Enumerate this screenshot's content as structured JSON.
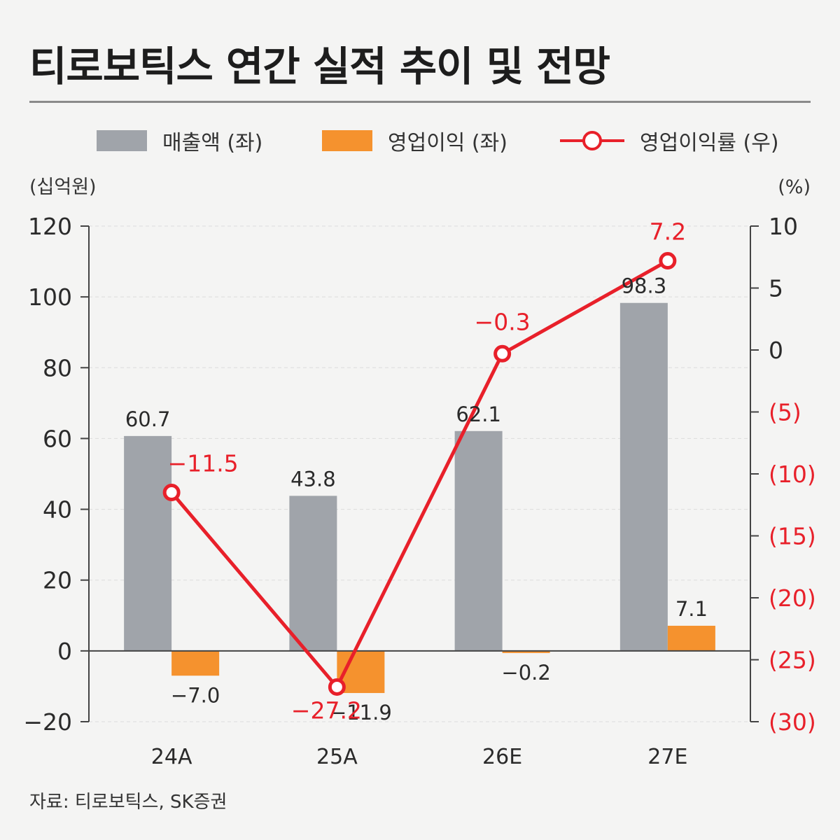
{
  "title": "티로보틱스 연간 실적 추이 및 전망",
  "legend": {
    "revenue": "매출액 (좌)",
    "op_income": "영업이익 (좌)",
    "op_margin": "영업이익률 (우)"
  },
  "axis": {
    "left_unit": "(십억원)",
    "right_unit": "(%)"
  },
  "source": "자료: 티로보틱스, SK증권",
  "colors": {
    "revenue": "#a0a4aa",
    "op_income": "#f5922e",
    "op_margin": "#e8202a",
    "negative_tick": "#e8202a"
  },
  "chart_data": {
    "type": "bar",
    "categories": [
      "24A",
      "25A",
      "26E",
      "27E"
    ],
    "series": [
      {
        "name": "매출액 (좌)",
        "axis": "left",
        "type": "bar",
        "values": [
          60.7,
          43.8,
          62.1,
          98.3
        ],
        "labels": [
          "60.7",
          "43.8",
          "62.1",
          "98.3"
        ]
      },
      {
        "name": "영업이익 (좌)",
        "axis": "left",
        "type": "bar",
        "values": [
          -7.0,
          -11.9,
          -0.2,
          7.1
        ],
        "labels": [
          "−7.0",
          "−11.9",
          "−0.2",
          "7.1"
        ]
      },
      {
        "name": "영업이익률 (우)",
        "axis": "right",
        "type": "line",
        "values": [
          -11.5,
          -27.2,
          -0.3,
          7.2
        ],
        "labels": [
          "−11.5",
          "−27.2",
          "−0.3",
          "7.2"
        ]
      }
    ],
    "left_axis": {
      "ylim": [
        -20,
        120
      ],
      "ticks": [
        120,
        100,
        80,
        60,
        40,
        20,
        0,
        -20
      ],
      "tick_labels": [
        "120",
        "100",
        "80",
        "60",
        "40",
        "20",
        "0",
        "−20"
      ]
    },
    "right_axis": {
      "ylim": [
        -30,
        10
      ],
      "ticks": [
        10,
        5,
        0,
        -5,
        -10,
        -15,
        -20,
        -25,
        -30
      ],
      "tick_labels": [
        "10",
        "5",
        "0",
        "(5)",
        "(10)",
        "(15)",
        "(20)",
        "(25)",
        "(30)"
      ]
    },
    "grid": true
  }
}
